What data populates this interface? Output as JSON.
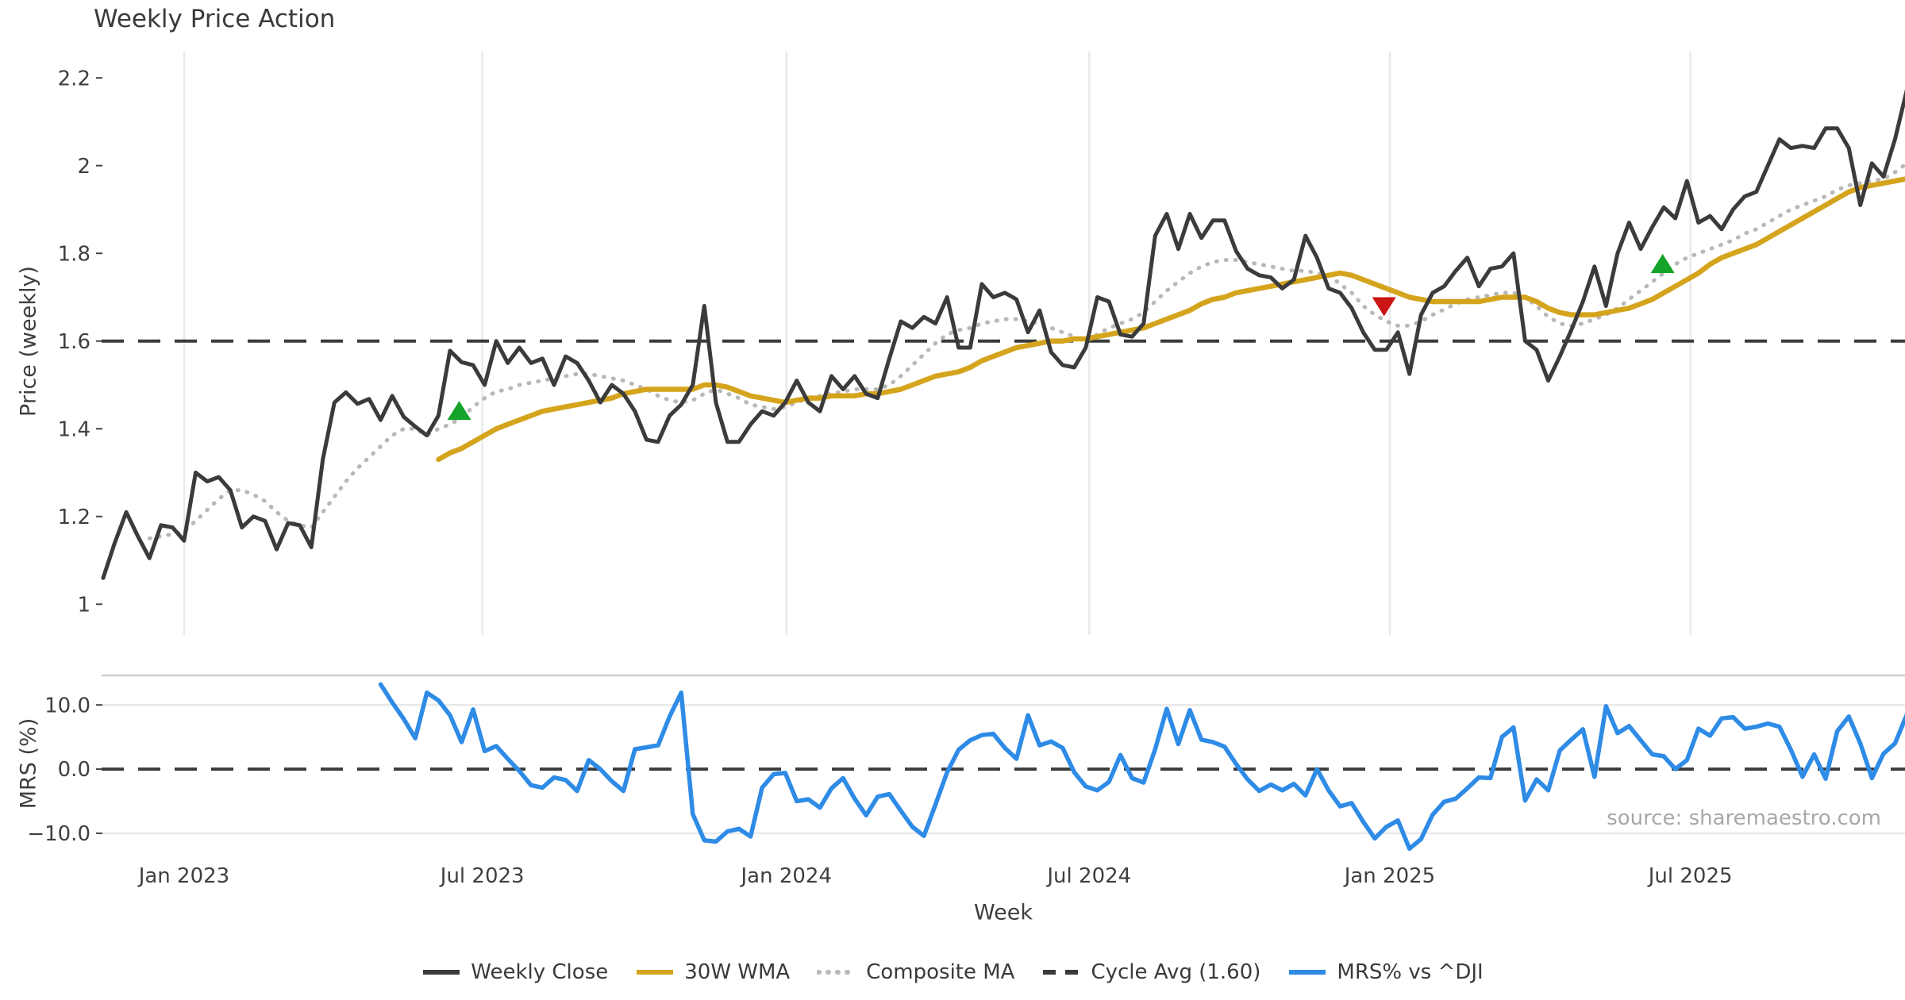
{
  "title": "Weekly Price Action",
  "source_note": "source: sharemaestro.com",
  "colors": {
    "close": "#3b3b3b",
    "wma": "#d5a41d",
    "composite": "#b8b8b8",
    "cycle": "#3b3b3b",
    "mrs": "#2e8be6",
    "buy_marker": "#15a32a",
    "sell_marker": "#cc1414",
    "grid": "#e9e9e9",
    "panel_border": "#cfcfcf",
    "tick_text": "#3f3f3f"
  },
  "legend": [
    {
      "label": "Weekly Close",
      "color": "#3b3b3b",
      "style": "solid"
    },
    {
      "label": "30W WMA",
      "color": "#d5a41d",
      "style": "solid"
    },
    {
      "label": "Composite MA",
      "color": "#b8b8b8",
      "style": "dotted"
    },
    {
      "label": "Cycle Avg (1.60)",
      "color": "#3b3b3b",
      "style": "dashed"
    },
    {
      "label": "MRS% vs ^DJI",
      "color": "#2e8be6",
      "style": "solid"
    }
  ],
  "chart_data": [
    {
      "type": "line",
      "panel": "price",
      "title": "Weekly Price Action",
      "xlabel": "Week",
      "ylabel": "Price (weekly)",
      "ylim": [
        0.93,
        2.26
      ],
      "yticks": [
        {
          "v": 1,
          "label": "1"
        },
        {
          "v": 1.2,
          "label": "1.2"
        },
        {
          "v": 1.4,
          "label": "1.4"
        },
        {
          "v": 1.6,
          "label": "1.6"
        },
        {
          "v": 1.8,
          "label": "1.8"
        },
        {
          "v": 2,
          "label": "2"
        },
        {
          "v": 2.2,
          "label": "2.2"
        }
      ],
      "xticks": [
        {
          "week": 7.0,
          "label": "Jan 2023"
        },
        {
          "week": 32.8,
          "label": "Jul 2023"
        },
        {
          "week": 59.1,
          "label": "Jan 2024"
        },
        {
          "week": 85.3,
          "label": "Jul 2024"
        },
        {
          "week": 111.3,
          "label": "Jan 2025"
        },
        {
          "week": 137.3,
          "label": "Jul 2025"
        }
      ],
      "grid": "vertical",
      "reference_line": {
        "value": 1.6,
        "label": "Cycle Avg (1.60)"
      },
      "series": [
        {
          "name": "Weekly Close",
          "values": [
            1.06,
            1.14,
            1.21,
            1.155,
            1.105,
            1.18,
            1.175,
            1.145,
            1.3,
            1.28,
            1.29,
            1.26,
            1.175,
            1.2,
            1.19,
            1.125,
            1.185,
            1.18,
            1.13,
            1.33,
            1.46,
            1.483,
            1.457,
            1.468,
            1.42,
            1.475,
            1.427,
            1.405,
            1.385,
            1.43,
            1.578,
            1.552,
            1.545,
            1.5,
            1.6,
            1.55,
            1.585,
            1.55,
            1.56,
            1.5,
            1.565,
            1.55,
            1.51,
            1.46,
            1.5,
            1.48,
            1.44,
            1.375,
            1.37,
            1.43,
            1.455,
            1.5,
            1.68,
            1.46,
            1.37,
            1.37,
            1.41,
            1.44,
            1.43,
            1.46,
            1.51,
            1.46,
            1.44,
            1.52,
            1.49,
            1.52,
            1.48,
            1.47,
            1.56,
            1.645,
            1.63,
            1.655,
            1.64,
            1.7,
            1.585,
            1.585,
            1.73,
            1.7,
            1.71,
            1.695,
            1.62,
            1.67,
            1.575,
            1.545,
            1.54,
            1.585,
            1.7,
            1.69,
            1.615,
            1.61,
            1.64,
            1.84,
            1.89,
            1.81,
            1.89,
            1.835,
            1.875,
            1.875,
            1.805,
            1.765,
            1.75,
            1.745,
            1.72,
            1.74,
            1.84,
            1.79,
            1.72,
            1.71,
            1.675,
            1.62,
            1.58,
            1.58,
            1.62,
            1.525,
            1.66,
            1.71,
            1.725,
            1.76,
            1.79,
            1.725,
            1.765,
            1.77,
            1.8,
            1.6,
            1.58,
            1.51,
            1.565,
            1.625,
            1.69,
            1.77,
            1.68,
            1.8,
            1.87,
            1.81,
            1.86,
            1.905,
            1.88,
            1.965,
            1.87,
            1.885,
            1.855,
            1.9,
            1.93,
            1.94,
            2.0,
            2.06,
            2.04,
            2.045,
            2.04,
            2.085,
            2.085,
            2.04,
            1.91,
            2.005,
            1.975,
            2.06,
            2.17
          ]
        },
        {
          "name": "30W WMA",
          "values": [
            null,
            null,
            null,
            null,
            null,
            null,
            null,
            null,
            null,
            null,
            null,
            null,
            null,
            null,
            null,
            null,
            null,
            null,
            null,
            null,
            null,
            null,
            null,
            null,
            null,
            null,
            null,
            null,
            null,
            1.33,
            1.345,
            1.355,
            1.37,
            1.385,
            1.4,
            1.41,
            1.42,
            1.43,
            1.44,
            1.445,
            1.45,
            1.455,
            1.46,
            1.465,
            1.47,
            1.48,
            1.485,
            1.49,
            1.49,
            1.49,
            1.49,
            1.49,
            1.5,
            1.5,
            1.495,
            1.485,
            1.475,
            1.47,
            1.465,
            1.46,
            1.465,
            1.47,
            1.47,
            1.475,
            1.475,
            1.475,
            1.48,
            1.48,
            1.485,
            1.49,
            1.5,
            1.51,
            1.52,
            1.525,
            1.53,
            1.54,
            1.555,
            1.565,
            1.575,
            1.585,
            1.59,
            1.595,
            1.6,
            1.6,
            1.605,
            1.605,
            1.61,
            1.615,
            1.62,
            1.625,
            1.63,
            1.64,
            1.65,
            1.66,
            1.67,
            1.685,
            1.695,
            1.7,
            1.71,
            1.715,
            1.72,
            1.725,
            1.73,
            1.735,
            1.74,
            1.745,
            1.75,
            1.755,
            1.75,
            1.74,
            1.73,
            1.72,
            1.71,
            1.7,
            1.695,
            1.69,
            1.69,
            1.69,
            1.69,
            1.69,
            1.695,
            1.7,
            1.7,
            1.7,
            1.69,
            1.675,
            1.665,
            1.66,
            1.66,
            1.66,
            1.665,
            1.67,
            1.675,
            1.685,
            1.695,
            1.71,
            1.725,
            1.74,
            1.755,
            1.775,
            1.79,
            1.8,
            1.81,
            1.82,
            1.835,
            1.85,
            1.865,
            1.88,
            1.895,
            1.91,
            1.925,
            1.94,
            1.95,
            1.955,
            1.96,
            1.965,
            1.97
          ]
        },
        {
          "name": "Composite MA",
          "values": [
            null,
            null,
            null,
            null,
            1.15,
            1.155,
            1.16,
            1.165,
            1.19,
            1.215,
            1.24,
            1.26,
            1.26,
            1.25,
            1.235,
            1.21,
            1.19,
            1.18,
            1.175,
            1.21,
            1.245,
            1.28,
            1.31,
            1.335,
            1.36,
            1.385,
            1.4,
            1.4,
            1.385,
            1.4,
            1.41,
            1.425,
            1.45,
            1.47,
            1.485,
            1.49,
            1.5,
            1.505,
            1.51,
            1.515,
            1.52,
            1.525,
            1.525,
            1.52,
            1.515,
            1.51,
            1.5,
            1.49,
            1.475,
            1.465,
            1.46,
            1.465,
            1.48,
            1.49,
            1.48,
            1.47,
            1.455,
            1.45,
            1.445,
            1.45,
            1.46,
            1.47,
            1.475,
            1.48,
            1.485,
            1.49,
            1.49,
            1.49,
            1.5,
            1.52,
            1.545,
            1.57,
            1.595,
            1.615,
            1.625,
            1.63,
            1.64,
            1.645,
            1.65,
            1.65,
            1.645,
            1.64,
            1.63,
            1.62,
            1.61,
            1.6,
            1.615,
            1.63,
            1.64,
            1.65,
            1.665,
            1.69,
            1.715,
            1.735,
            1.755,
            1.77,
            1.78,
            1.785,
            1.785,
            1.78,
            1.775,
            1.77,
            1.765,
            1.76,
            1.76,
            1.755,
            1.75,
            1.73,
            1.71,
            1.68,
            1.66,
            1.645,
            1.635,
            1.635,
            1.645,
            1.66,
            1.672,
            1.685,
            1.695,
            1.7,
            1.705,
            1.71,
            1.71,
            1.7,
            1.68,
            1.655,
            1.64,
            1.635,
            1.64,
            1.65,
            1.66,
            1.675,
            1.695,
            1.715,
            1.735,
            1.755,
            1.775,
            1.79,
            1.8,
            1.81,
            1.82,
            1.83,
            1.845,
            1.855,
            1.87,
            1.885,
            1.9,
            1.91,
            1.92,
            1.93,
            1.945,
            1.955,
            1.96,
            1.965,
            1.97,
            1.985,
            2.005
          ]
        }
      ],
      "markers": [
        {
          "week": 30.8,
          "price": 1.44,
          "shape": "triangle-up",
          "color": "#15a32a",
          "meaning": "buy-signal"
        },
        {
          "week": 110.8,
          "price": 1.68,
          "shape": "triangle-down",
          "color": "#cc1414",
          "meaning": "sell-signal"
        },
        {
          "week": 134.9,
          "price": 1.775,
          "shape": "triangle-up",
          "color": "#15a32a",
          "meaning": "buy-signal"
        }
      ]
    },
    {
      "type": "line",
      "panel": "oscillator",
      "xlabel": "Week",
      "ylabel": "MRS (%)",
      "ylim": [
        -13.1,
        14.6
      ],
      "yticks": [
        {
          "v": 10,
          "label": "10.0"
        },
        {
          "v": 0,
          "label": "0.0"
        },
        {
          "v": -10,
          "label": "−10.0"
        }
      ],
      "grid": "horizontal",
      "reference_line": {
        "value": 0,
        "label": "zero line"
      },
      "series": [
        {
          "name": "MRS% vs ^DJI",
          "values": [
            null,
            null,
            null,
            null,
            null,
            null,
            null,
            null,
            null,
            null,
            null,
            null,
            null,
            null,
            null,
            null,
            null,
            null,
            null,
            null,
            null,
            null,
            null,
            null,
            13.2,
            10.4,
            7.8,
            4.8,
            11.9,
            10.7,
            8.4,
            4.2,
            9.3,
            2.8,
            3.6,
            1.6,
            -0.3,
            -2.5,
            -2.9,
            -1.3,
            -1.7,
            -3.4,
            1.4,
            0.0,
            -1.9,
            -3.4,
            3.1,
            3.4,
            3.7,
            8.2,
            11.9,
            -7.0,
            -11.1,
            -11.3,
            -9.7,
            -9.3,
            -10.5,
            -2.9,
            -0.8,
            -0.6,
            -5.0,
            -4.7,
            -6.0,
            -3.0,
            -1.4,
            -4.6,
            -7.2,
            -4.3,
            -3.9,
            -6.5,
            -9.0,
            -10.4,
            -5.5,
            -0.5,
            3.0,
            4.5,
            5.3,
            5.5,
            3.3,
            1.6,
            8.4,
            3.7,
            4.3,
            3.3,
            -0.5,
            -2.7,
            -3.3,
            -2.0,
            2.2,
            -1.4,
            -2.1,
            3.1,
            9.4,
            3.9,
            9.2,
            4.6,
            4.2,
            3.5,
            0.8,
            -1.6,
            -3.4,
            -2.4,
            -3.3,
            -2.3,
            -4.1,
            0.0,
            -3.3,
            -5.8,
            -5.3,
            -8.2,
            -10.8,
            -9.0,
            -8.0,
            -12.4,
            -10.9,
            -7.1,
            -5.1,
            -4.6,
            -3.0,
            -1.3,
            -1.4,
            5.0,
            6.5,
            -4.9,
            -1.6,
            -3.3,
            2.9,
            4.6,
            6.2,
            -1.2,
            9.8,
            5.6,
            6.7,
            4.5,
            2.3,
            2.0,
            0.0,
            1.4,
            6.3,
            5.2,
            7.9,
            8.1,
            6.3,
            6.6,
            7.1,
            6.6,
            3.0,
            -1.2,
            2.3,
            -1.5,
            5.9,
            8.2,
            4.0,
            -1.4,
            2.4,
            4.0,
            8.4
          ]
        }
      ]
    }
  ]
}
